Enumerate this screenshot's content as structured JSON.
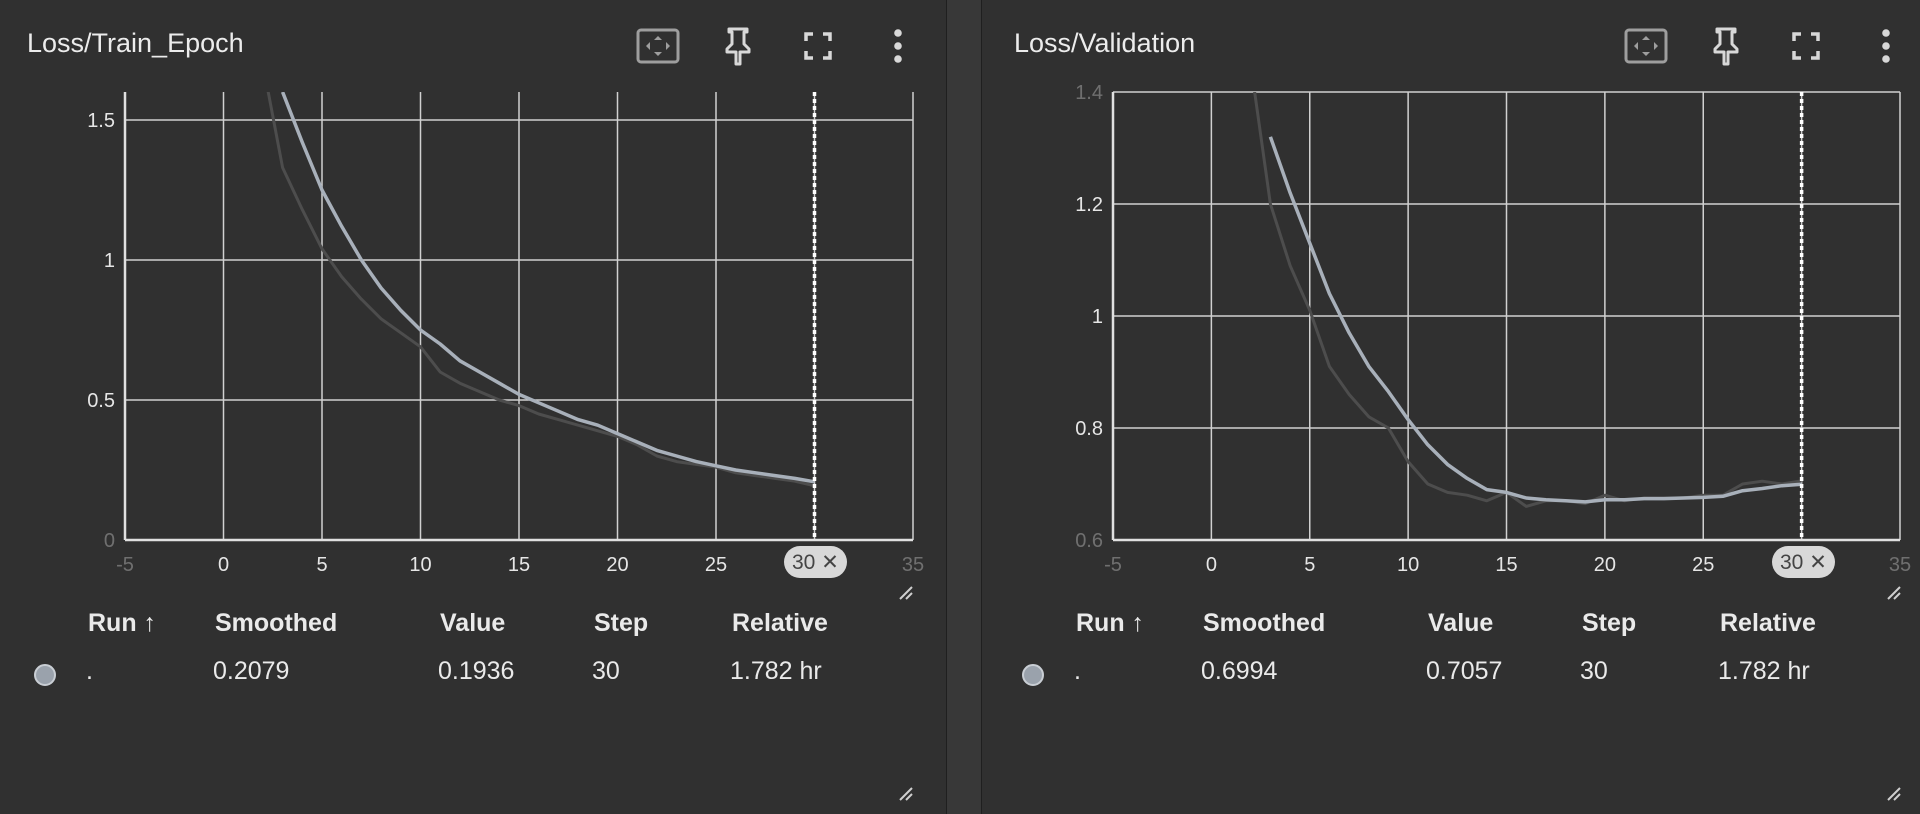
{
  "cards": [
    {
      "title": "Loss/Train_Epoch",
      "table": {
        "headers": {
          "run": "Run ↑",
          "smoothed": "Smoothed",
          "value": "Value",
          "step": "Step",
          "relative": "Relative"
        },
        "row": {
          "run": ".",
          "smoothed": "0.2079",
          "value": "0.1936",
          "step": "30",
          "relative": "1.782 hr"
        }
      },
      "step_chip": "30 ✕",
      "toolbar": [
        "fit-domain-icon",
        "pin-icon",
        "fullscreen-icon",
        "more-vert-icon"
      ]
    },
    {
      "title": "Loss/Validation",
      "table": {
        "headers": {
          "run": "Run ↑",
          "smoothed": "Smoothed",
          "value": "Value",
          "step": "Step",
          "relative": "Relative"
        },
        "row": {
          "run": ".",
          "smoothed": "0.6994",
          "value": "0.7057",
          "step": "30",
          "relative": "1.782 hr"
        }
      },
      "step_chip": "30 ✕",
      "toolbar": [
        "fit-domain-icon",
        "pin-icon",
        "fullscreen-icon",
        "more-vert-icon"
      ]
    }
  ],
  "chart_data": [
    {
      "type": "line",
      "title": "Loss/Train_Epoch",
      "xlim": [
        -5,
        35
      ],
      "ylim": [
        0,
        1.6
      ],
      "x_ticks": [
        -5,
        0,
        5,
        10,
        15,
        20,
        25,
        30,
        35
      ],
      "x_tick_labels": [
        "-5",
        "0",
        "5",
        "10",
        "15",
        "20",
        "25",
        "",
        "35"
      ],
      "y_ticks": [
        0,
        0.5,
        1,
        1.5
      ],
      "y_tick_labels": [
        "0",
        "0.5",
        "1",
        "1.5"
      ],
      "grid": true,
      "step_marker": 30,
      "series": [
        {
          "role": "raw",
          "color": "#4d4d4d",
          "x": [
            2,
            3,
            4,
            5,
            6,
            7,
            8,
            9,
            10,
            11,
            12,
            13,
            14,
            15,
            16,
            17,
            18,
            19,
            20,
            21,
            22,
            23,
            24,
            25,
            26,
            27,
            28,
            29,
            30
          ],
          "y": [
            1.7,
            1.33,
            1.18,
            1.04,
            0.94,
            0.86,
            0.79,
            0.74,
            0.69,
            0.6,
            0.56,
            0.53,
            0.5,
            0.48,
            0.45,
            0.43,
            0.41,
            0.39,
            0.37,
            0.34,
            0.3,
            0.28,
            0.27,
            0.26,
            0.24,
            0.23,
            0.22,
            0.21,
            0.1936
          ]
        },
        {
          "role": "smoothed",
          "color": "#a8b0ba",
          "x": [
            3,
            4,
            5,
            6,
            7,
            8,
            9,
            10,
            11,
            12,
            13,
            14,
            15,
            16,
            17,
            18,
            19,
            20,
            21,
            22,
            23,
            24,
            25,
            26,
            27,
            28,
            29,
            30
          ],
          "y": [
            1.6,
            1.42,
            1.25,
            1.12,
            1.0,
            0.9,
            0.82,
            0.75,
            0.7,
            0.64,
            0.6,
            0.56,
            0.52,
            0.49,
            0.46,
            0.43,
            0.41,
            0.38,
            0.35,
            0.32,
            0.3,
            0.28,
            0.265,
            0.25,
            0.24,
            0.23,
            0.22,
            0.2079
          ]
        }
      ]
    },
    {
      "type": "line",
      "title": "Loss/Validation",
      "xlim": [
        -5,
        35
      ],
      "ylim": [
        0.6,
        1.4
      ],
      "x_ticks": [
        -5,
        0,
        5,
        10,
        15,
        20,
        25,
        30,
        35
      ],
      "x_tick_labels": [
        "-5",
        "0",
        "5",
        "10",
        "15",
        "20",
        "25",
        "",
        "35"
      ],
      "y_ticks": [
        0.6,
        0.8,
        1,
        1.2,
        1.4
      ],
      "y_tick_labels": [
        "0.6",
        "0.8",
        "1",
        "1.2",
        "1.4"
      ],
      "grid": true,
      "step_marker": 30,
      "series": [
        {
          "role": "raw",
          "color": "#4d4d4d",
          "x": [
            2,
            3,
            4,
            5,
            6,
            7,
            8,
            9,
            10,
            11,
            12,
            13,
            14,
            15,
            16,
            17,
            18,
            19,
            20,
            21,
            22,
            23,
            24,
            25,
            26,
            27,
            28,
            29,
            30
          ],
          "y": [
            1.45,
            1.2,
            1.09,
            1.01,
            0.91,
            0.86,
            0.82,
            0.8,
            0.74,
            0.7,
            0.685,
            0.68,
            0.67,
            0.685,
            0.66,
            0.67,
            0.67,
            0.665,
            0.68,
            0.67,
            0.675,
            0.675,
            0.675,
            0.68,
            0.68,
            0.7,
            0.705,
            0.7,
            0.7057
          ]
        },
        {
          "role": "smoothed",
          "color": "#a8b0ba",
          "x": [
            3,
            4,
            5,
            6,
            7,
            8,
            9,
            10,
            11,
            12,
            13,
            14,
            15,
            16,
            17,
            18,
            19,
            20,
            21,
            22,
            23,
            24,
            25,
            26,
            27,
            28,
            29,
            30
          ],
          "y": [
            1.32,
            1.22,
            1.13,
            1.04,
            0.97,
            0.91,
            0.865,
            0.815,
            0.77,
            0.735,
            0.71,
            0.69,
            0.685,
            0.675,
            0.672,
            0.67,
            0.668,
            0.672,
            0.672,
            0.674,
            0.674,
            0.675,
            0.676,
            0.678,
            0.688,
            0.692,
            0.697,
            0.6994
          ]
        }
      ]
    }
  ]
}
